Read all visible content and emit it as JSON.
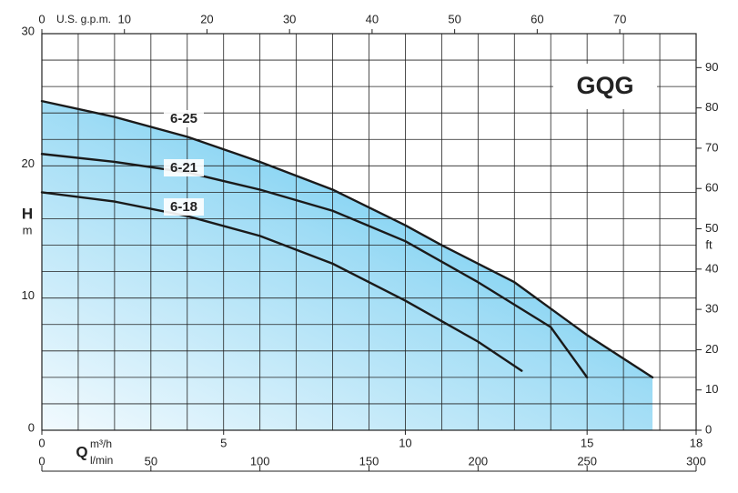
{
  "chart_data": {
    "type": "line",
    "model_label": "GQG",
    "x_label": "Q",
    "x_unit": "m³/h",
    "x3_unit": "l/min",
    "x2_label": "U.S. g.p.m.",
    "y_label": "H",
    "y_unit": "m",
    "y2_unit": "ft",
    "xlim": [
      0,
      18
    ],
    "xticks": [
      0,
      5,
      10,
      15,
      18
    ],
    "ylim": [
      0,
      30
    ],
    "yticks": [
      0,
      10,
      20,
      30
    ],
    "x2lim": [
      0,
      79.25
    ],
    "x2ticks": [
      0,
      10,
      20,
      30,
      40,
      50,
      60,
      70
    ],
    "x3lim": [
      0,
      300
    ],
    "x3ticks": [
      0,
      50,
      100,
      150,
      200,
      250,
      300
    ],
    "y2lim": [
      0,
      98.43
    ],
    "y2ticks": [
      0,
      10,
      20,
      30,
      40,
      50,
      60,
      70,
      80,
      90
    ],
    "x_grid_step": 1,
    "y_grid_step": 2,
    "grid": true,
    "series": [
      {
        "name": "6-25",
        "color": "#1a1a1a",
        "fill": true,
        "x": [
          0,
          2,
          4,
          6,
          8,
          10,
          11,
          13,
          14,
          15,
          16.8
        ],
        "values": [
          24.9,
          23.7,
          22.2,
          20.3,
          18.2,
          15.5,
          14.0,
          11.2,
          9.2,
          7.2,
          4.0
        ]
      },
      {
        "name": "6-21",
        "color": "#1a1a1a",
        "fill": false,
        "x": [
          0,
          2,
          4,
          6,
          8,
          10,
          12,
          14,
          15
        ],
        "values": [
          20.9,
          20.3,
          19.5,
          18.2,
          16.6,
          14.3,
          11.2,
          7.8,
          4.0
        ]
      },
      {
        "name": "6-18",
        "color": "#1a1a1a",
        "fill": false,
        "x": [
          0,
          2,
          4,
          6,
          8,
          10,
          12,
          13.2
        ],
        "values": [
          18.0,
          17.3,
          16.2,
          14.7,
          12.6,
          9.8,
          6.7,
          4.5
        ]
      }
    ]
  }
}
